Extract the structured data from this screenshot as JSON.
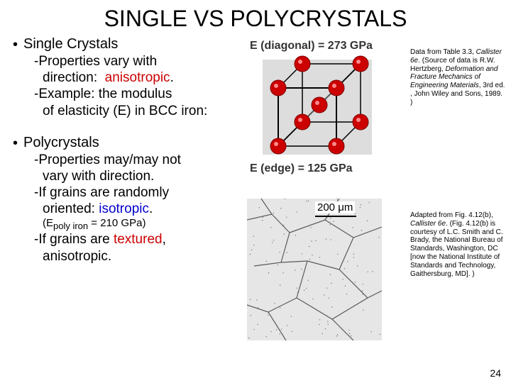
{
  "title": "SINGLE VS POLYCRYSTALS",
  "section1": {
    "header": "Single Crystals",
    "line1a": "-Properties vary with",
    "line1b": "direction:",
    "aniso": "anisotropic",
    "period1": ".",
    "line2a": "-Example:  the modulus",
    "line2b": "of elasticity (E) in BCC iron:"
  },
  "cube": {
    "e_diag": "E (diagonal) = 273 GPa",
    "e_edge": "E (edge) = 125 GPa",
    "atom_color": "#cc0000",
    "edge_color": "#000000",
    "diag_color": "#555555",
    "bg": "#dddddd"
  },
  "citation1": {
    "l1": "Data from Table 3.3,",
    "l2": "Callister 6e",
    "l2b": ".",
    "l3": "(Source of data is R.W. Hertzberg,",
    "l4": "Deformation and Fracture Mechanics of Engineering Materials",
    "l5": ", 3rd ed. , John Wiley and Sons, 1989. )"
  },
  "section2": {
    "header": "Polycrystals",
    "line1a": "-Properties may/may not",
    "line1b": "vary with direction.",
    "line2a": "-If grains are randomly",
    "line2b": "oriented:",
    "iso": "isotropic",
    "period2": ".",
    "paren_open": "(E",
    "paren_sub": "poly iron",
    "paren_rest": " = 210 GPa)",
    "line4a": "-If grains are",
    "textured": "textured",
    "comma": ",",
    "line4b": "anisotropic."
  },
  "grains": {
    "scale_label": "200 μm",
    "line_color": "#5a5a5a",
    "bg": "#e6e6e6"
  },
  "citation2": {
    "l1": "Adapted from Fig. 4.12(b),",
    "l2": "Callister 6e",
    "l2b": ". (Fig. 4.12(b) is courtesy of L.C. Smith and C. Brady, the National Bureau of Standards, Washington, DC [now the National Institute of Standards and Technology, Gaithersburg, MD]. )"
  },
  "page_number": "24"
}
